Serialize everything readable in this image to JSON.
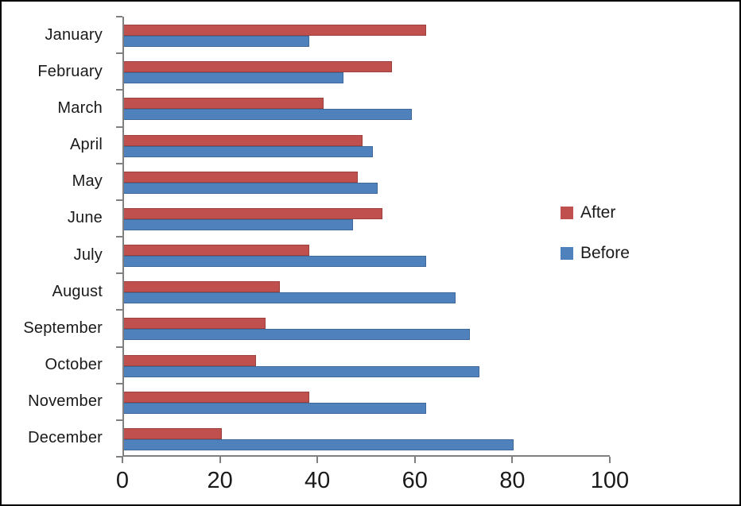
{
  "chart_data": {
    "type": "bar",
    "orientation": "horizontal",
    "title": "",
    "xlabel": "",
    "ylabel": "",
    "grid": false,
    "categories": [
      "January",
      "February",
      "March",
      "April",
      "May",
      "June",
      "July",
      "August",
      "September",
      "October",
      "November",
      "December"
    ],
    "series": [
      {
        "name": "After",
        "color": "#C0504D",
        "values": [
          62,
          55,
          41,
          49,
          48,
          53,
          38,
          32,
          29,
          27,
          38,
          20
        ]
      },
      {
        "name": "Before",
        "color": "#4F81BD",
        "values": [
          38,
          45,
          59,
          51,
          52,
          47,
          62,
          68,
          71,
          73,
          62,
          80
        ]
      }
    ],
    "x_axis": {
      "min": 0,
      "max": 100,
      "tick_interval": 20,
      "tick_labels": [
        "0",
        "20",
        "40",
        "60",
        "80",
        "100"
      ]
    },
    "legend": {
      "position": "right",
      "entries": [
        {
          "label": "After",
          "color": "#C0504D"
        },
        {
          "label": "Before",
          "color": "#4F81BD"
        }
      ]
    },
    "colors": {
      "axis": "#808080",
      "text": "#1a1a1a",
      "background": "#ffffff"
    }
  }
}
